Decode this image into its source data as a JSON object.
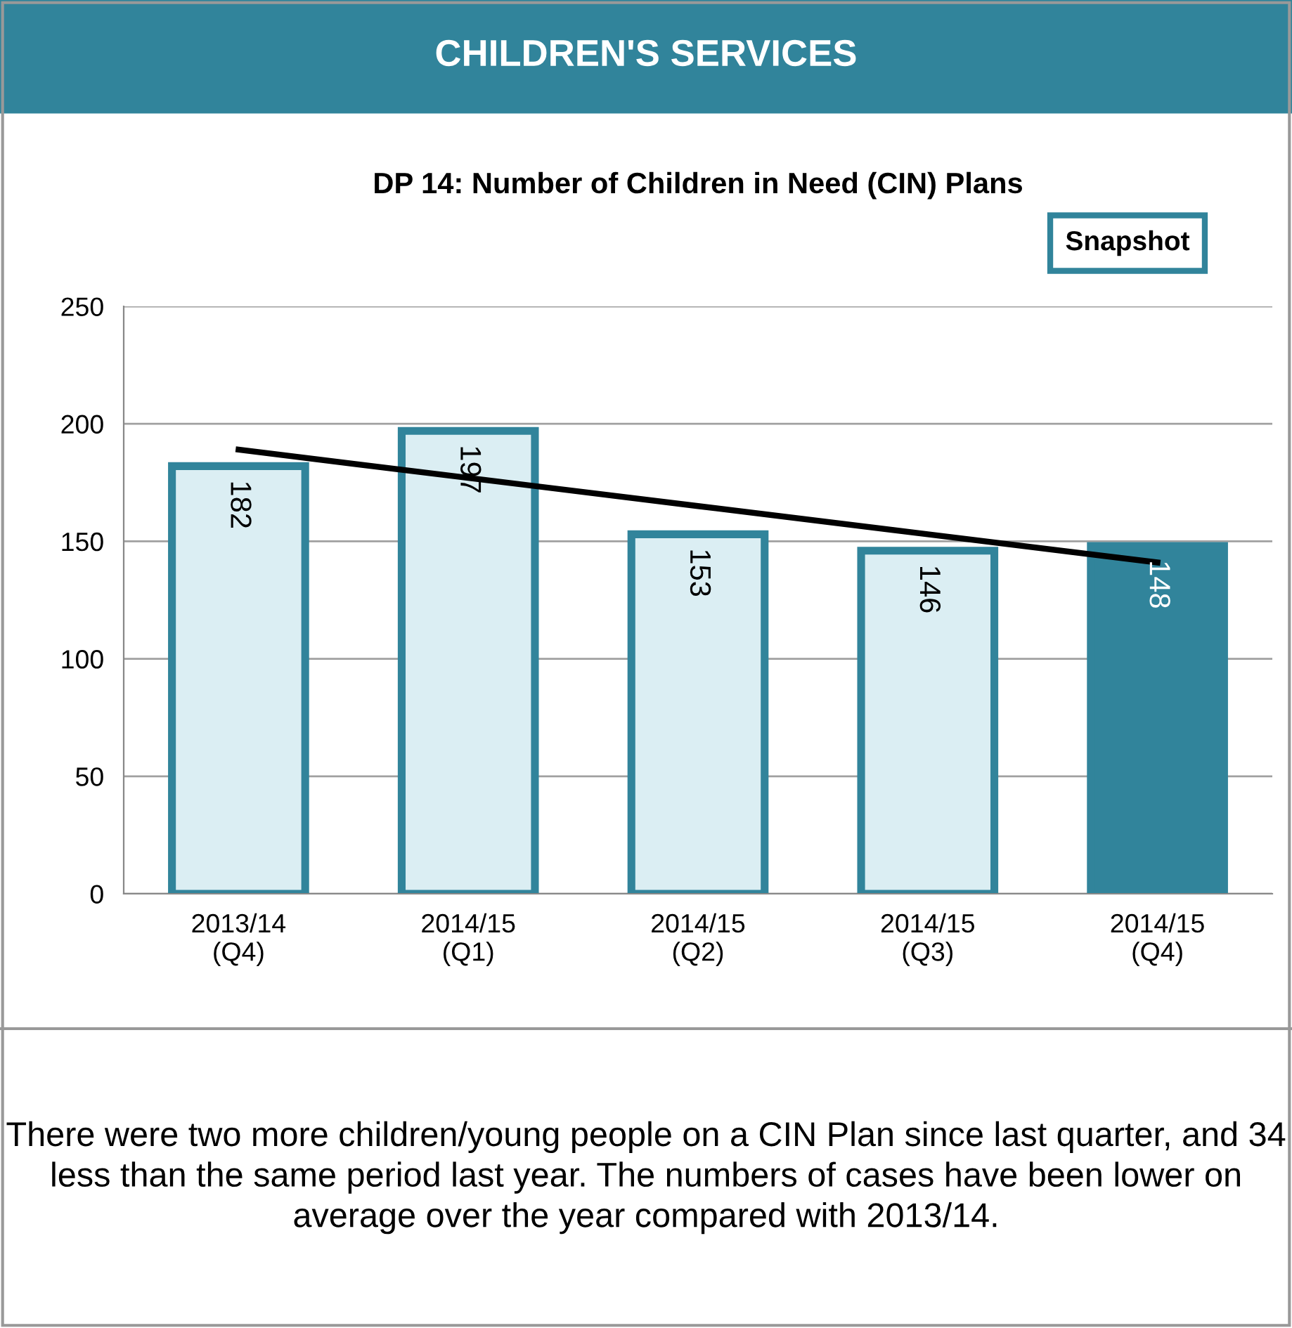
{
  "chart_data": {
    "type": "bar",
    "title": "DP 14: Number of Children in Need (CIN) Plans",
    "annotations": [
      "CHILDREN'S SERVICES",
      "Snapshot",
      "There were two more children/young people on a CIN Plan since last quarter, and 34 less than the same period last year. The numbers of cases have been lower on average over the year compared with 2013/14."
    ],
    "categories": [
      "2013/14\n(Q4)",
      "2014/15\n(Q1)",
      "2014/15\n(Q2)",
      "2014/15\n(Q3)",
      "2014/15\n(Q4)"
    ],
    "series": [
      {
        "color": "#31849b",
        "colors": [
          "#dbeef3",
          "#dbeef3",
          "#dbeef3",
          "#dbeef3",
          "#31849b"
        ],
        "values": [
          182,
          197,
          153,
          146,
          148
        ],
        "data_labels": true
      },
      {
        "type": "line",
        "color": "#000000",
        "values": [
          189,
          177,
          165,
          153,
          141
        ]
      }
    ],
    "ylim": [
      0,
      250
    ],
    "yticks": [
      0,
      50,
      100,
      150,
      200,
      250
    ],
    "grid": "y"
  }
}
